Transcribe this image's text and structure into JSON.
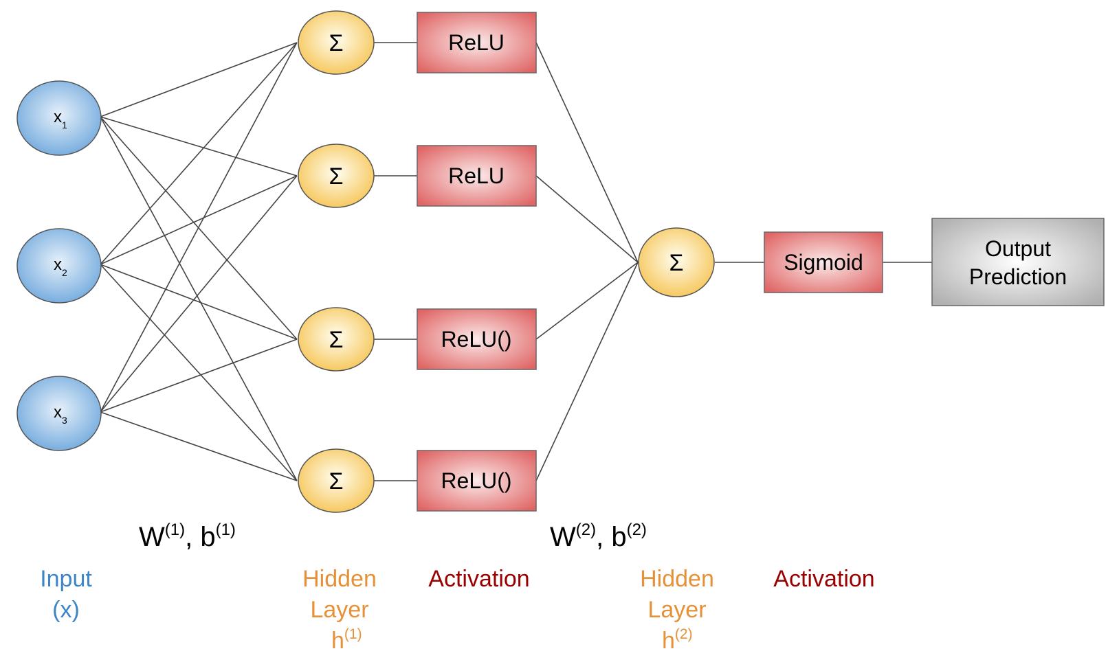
{
  "inputs": [
    {
      "label": "x",
      "sub": "1"
    },
    {
      "label": "x",
      "sub": "2"
    },
    {
      "label": "x",
      "sub": "3"
    }
  ],
  "hidden1": [
    {
      "symbol": "Σ",
      "activation": "ReLU"
    },
    {
      "symbol": "Σ",
      "activation": "ReLU"
    },
    {
      "symbol": "Σ",
      "activation": "ReLU()"
    },
    {
      "symbol": "Σ",
      "activation": "ReLU()"
    }
  ],
  "hidden2": {
    "symbol": "Σ",
    "activation": "Sigmoid"
  },
  "output": {
    "line1": "Output",
    "line2": "Prediction"
  },
  "weights1": {
    "w": "W",
    "w_sup": "(1)",
    "sep": ", ",
    "b": "b",
    "b_sup": "(1)"
  },
  "weights2": {
    "w": "W",
    "w_sup": "(2)",
    "sep": ", ",
    "b": "b",
    "b_sup": "(2)"
  },
  "labels": {
    "input_line1": "Input",
    "input_line2": "(x)",
    "hidden1_line1": "Hidden",
    "hidden1_line2": "Layer",
    "hidden1_line3": "h",
    "hidden1_sup": "(1)",
    "activation1": "Activation",
    "hidden2_line1": "Hidden",
    "hidden2_line2": "Layer",
    "hidden2_line3": "h",
    "hidden2_sup": "(2)",
    "activation2": "Activation"
  },
  "colors": {
    "input_label": "#3d85c6",
    "hidden_label": "#e69138",
    "activation_label": "#990000",
    "edge": "#444444"
  }
}
